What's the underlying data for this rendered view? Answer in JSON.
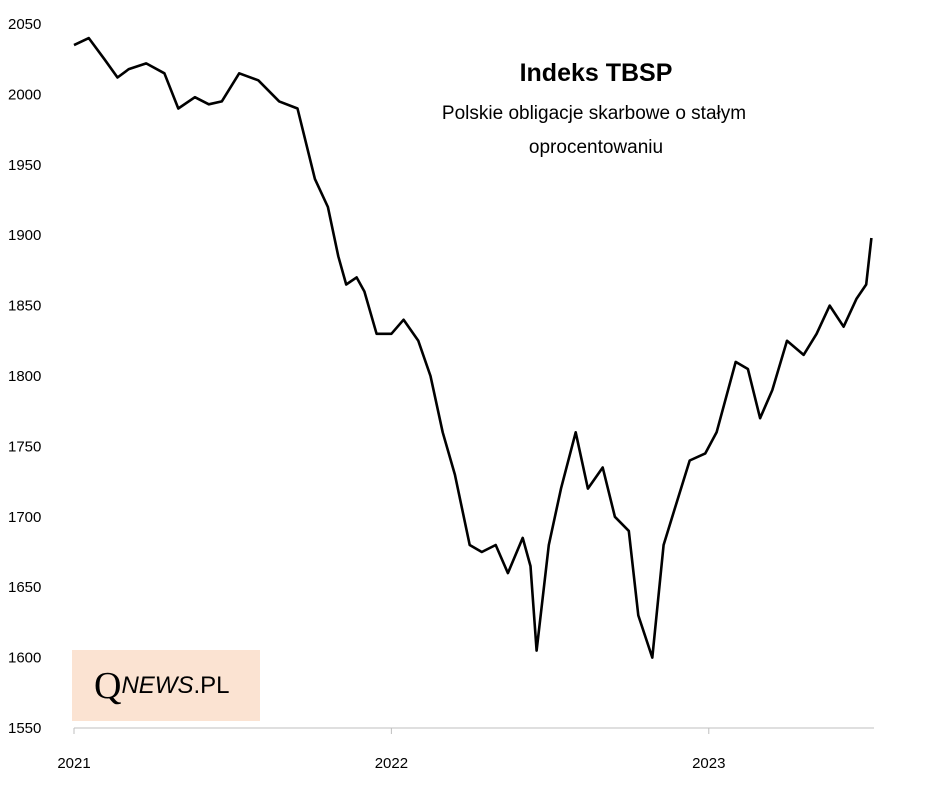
{
  "chart_data": {
    "type": "line",
    "title": "Indeks TBSP",
    "subtitle_line1": "Polskie obligacje skarbowe o stałym",
    "subtitle_line2": "oprocentowaniu",
    "xlabel": "",
    "ylabel": "",
    "ylim": [
      1550,
      2050
    ],
    "xlim": [
      "2021-01-01",
      "2023-07-10"
    ],
    "yticks": [
      2050,
      2000,
      1950,
      1900,
      1850,
      1800,
      1750,
      1700,
      1650,
      1600,
      1550
    ],
    "xticks": [
      {
        "label": "2021",
        "date": "2021-01-01"
      },
      {
        "label": "2022",
        "date": "2022-01-01"
      },
      {
        "label": "2023",
        "date": "2023-01-01"
      }
    ],
    "grid": false,
    "legend": "none",
    "line_color": "#000000",
    "series": [
      {
        "x": [
          "2021-01-01",
          "2021-01-18",
          "2021-02-05",
          "2021-02-20",
          "2021-03-05",
          "2021-03-25",
          "2021-04-15",
          "2021-05-01",
          "2021-05-20",
          "2021-06-05",
          "2021-06-20",
          "2021-07-10",
          "2021-08-01",
          "2021-08-25",
          "2021-09-15",
          "2021-10-05",
          "2021-10-20",
          "2021-11-01",
          "2021-11-10",
          "2021-11-22",
          "2021-12-01",
          "2021-12-15",
          "2022-01-01",
          "2022-01-15",
          "2022-02-01",
          "2022-02-15",
          "2022-03-01",
          "2022-03-15",
          "2022-04-01",
          "2022-04-15",
          "2022-05-01",
          "2022-05-15",
          "2022-06-01",
          "2022-06-10",
          "2022-06-17",
          "2022-07-01",
          "2022-07-15",
          "2022-08-01",
          "2022-08-15",
          "2022-09-01",
          "2022-09-15",
          "2022-10-01",
          "2022-10-12",
          "2022-10-20",
          "2022-10-28",
          "2022-11-10",
          "2022-11-25",
          "2022-12-10",
          "2022-12-28",
          "2023-01-10",
          "2023-02-01",
          "2023-02-15",
          "2023-03-01",
          "2023-03-15",
          "2023-04-01",
          "2023-04-20",
          "2023-05-05",
          "2023-05-20",
          "2023-06-05",
          "2023-06-20",
          "2023-07-01",
          "2023-07-07"
        ],
        "y": [
          2035,
          2040,
          2025,
          2012,
          2018,
          2022,
          2015,
          1990,
          1998,
          1993,
          1995,
          2015,
          2010,
          1995,
          1990,
          1940,
          1920,
          1885,
          1865,
          1870,
          1860,
          1830,
          1830,
          1840,
          1825,
          1800,
          1760,
          1730,
          1680,
          1675,
          1680,
          1660,
          1685,
          1665,
          1605,
          1680,
          1720,
          1760,
          1720,
          1735,
          1700,
          1690,
          1630,
          1615,
          1600,
          1680,
          1710,
          1740,
          1745,
          1760,
          1810,
          1805,
          1770,
          1790,
          1825,
          1815,
          1830,
          1850,
          1835,
          1855,
          1865,
          1898
        ]
      }
    ]
  },
  "logo": {
    "q": "Q",
    "news": "NEWS",
    "pl": ".PL"
  }
}
